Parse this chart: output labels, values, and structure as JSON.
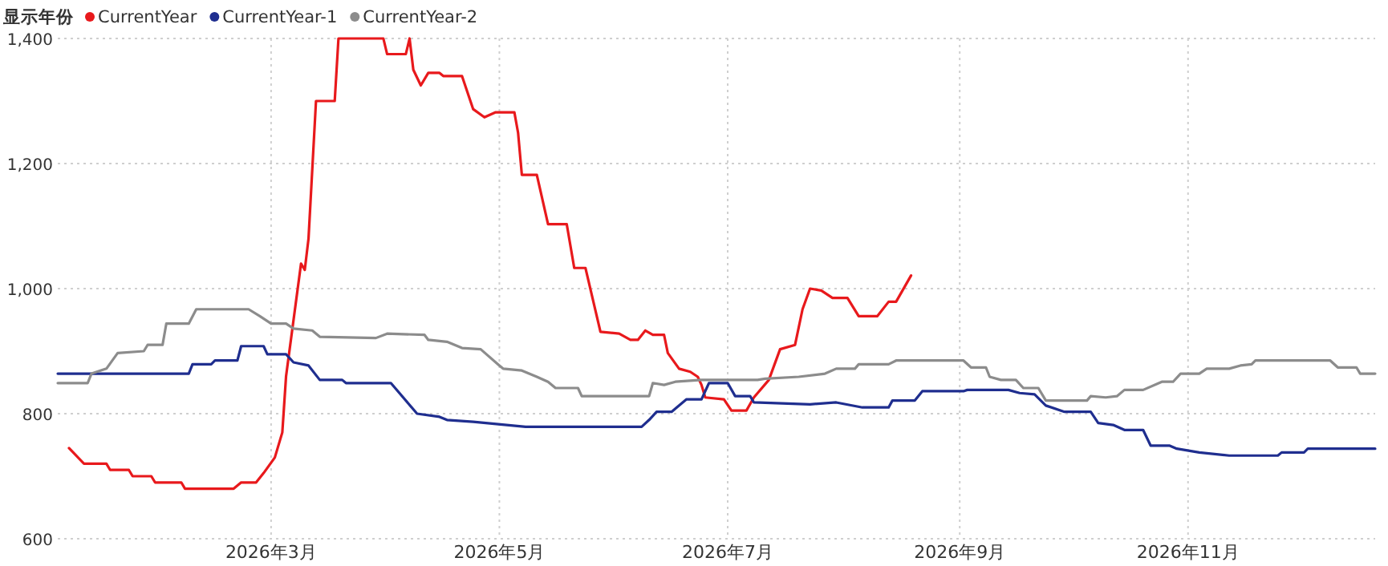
{
  "chart_data": {
    "type": "line",
    "legend_title": "显示年份",
    "legend": "top left",
    "grid": true,
    "xlim": [
      "2026-01-03",
      "2026-12-21"
    ],
    "ylim": [
      600,
      1400
    ],
    "xticks": [
      {
        "value": "2026-03-01",
        "label": "2026年3月"
      },
      {
        "value": "2026-05-01",
        "label": "2026年5月"
      },
      {
        "value": "2026-07-01",
        "label": "2026年7月"
      },
      {
        "value": "2026-09-01",
        "label": "2026年9月"
      },
      {
        "value": "2026-11-01",
        "label": "2026年11月"
      }
    ],
    "yticks": [
      600,
      800,
      {
        "value": 1000,
        "label": "1,000"
      },
      {
        "value": 1200,
        "label": "1,200"
      },
      {
        "value": 1400,
        "label": "1,400"
      }
    ],
    "series": [
      {
        "name": "CurrentYear",
        "color": "#e8191c",
        "x": [
          "2026-01-06",
          "2026-01-10",
          "2026-01-16",
          "2026-01-17",
          "2026-01-22",
          "2026-01-23",
          "2026-01-28",
          "2026-01-29",
          "2026-02-05",
          "2026-02-06",
          "2026-02-19",
          "2026-02-21",
          "2026-02-25",
          "2026-02-27",
          "2026-03-02",
          "2026-03-04",
          "2026-03-05",
          "2026-03-07",
          "2026-03-09",
          "2026-03-10",
          "2026-03-11",
          "2026-03-13",
          "2026-03-18",
          "2026-03-19",
          "2026-03-31",
          "2026-04-01",
          "2026-04-06",
          "2026-04-07",
          "2026-04-08",
          "2026-04-10",
          "2026-04-12",
          "2026-04-15",
          "2026-04-16",
          "2026-04-21",
          "2026-04-24",
          "2026-04-27",
          "2026-04-30",
          "2026-05-05",
          "2026-05-06",
          "2026-05-07",
          "2026-05-11",
          "2026-05-14",
          "2026-05-19",
          "2026-05-21",
          "2026-05-24",
          "2026-05-28",
          "2026-06-02",
          "2026-06-05",
          "2026-06-07",
          "2026-06-09",
          "2026-06-11",
          "2026-06-14",
          "2026-06-15",
          "2026-06-18",
          "2026-06-21",
          "2026-06-23",
          "2026-06-24",
          "2026-06-25",
          "2026-06-30",
          "2026-07-02",
          "2026-07-06",
          "2026-07-08",
          "2026-07-12",
          "2026-07-15",
          "2026-07-19",
          "2026-07-21",
          "2026-07-23",
          "2026-07-26",
          "2026-07-29",
          "2026-08-02",
          "2026-08-05",
          "2026-08-10",
          "2026-08-13",
          "2026-08-15",
          "2026-08-19"
        ],
        "values": [
          745,
          720,
          720,
          710,
          710,
          700,
          700,
          690,
          690,
          680,
          680,
          690,
          690,
          705,
          730,
          770,
          860,
          950,
          1040,
          1030,
          1080,
          1300,
          1300,
          1400,
          1400,
          1375,
          1375,
          1400,
          1350,
          1325,
          1345,
          1345,
          1340,
          1340,
          1287,
          1274,
          1282,
          1282,
          1249,
          1182,
          1182,
          1103,
          1103,
          1033,
          1033,
          931,
          928,
          918,
          918,
          933,
          926,
          926,
          897,
          872,
          867,
          859,
          846,
          826,
          823,
          805,
          805,
          826,
          854,
          903,
          910,
          967,
          1000,
          997,
          985,
          985,
          956,
          956,
          979,
          979,
          1021
        ]
      },
      {
        "name": "CurrentYear-1",
        "color": "#1f2e8f",
        "x": [
          "2026-01-03",
          "2026-02-07",
          "2026-02-08",
          "2026-02-13",
          "2026-02-14",
          "2026-02-20",
          "2026-02-21",
          "2026-02-27",
          "2026-02-28",
          "2026-03-05",
          "2026-03-07",
          "2026-03-11",
          "2026-03-14",
          "2026-03-20",
          "2026-03-21",
          "2026-04-02",
          "2026-04-09",
          "2026-04-15",
          "2026-04-17",
          "2026-04-24",
          "2026-05-08",
          "2026-06-08",
          "2026-06-10",
          "2026-06-12",
          "2026-06-16",
          "2026-06-20",
          "2026-06-24",
          "2026-06-26",
          "2026-07-01",
          "2026-07-03",
          "2026-07-07",
          "2026-07-08",
          "2026-07-23",
          "2026-07-30",
          "2026-08-06",
          "2026-08-13",
          "2026-08-14",
          "2026-08-20",
          "2026-08-22",
          "2026-09-02",
          "2026-09-03",
          "2026-09-14",
          "2026-09-17",
          "2026-09-21",
          "2026-09-24",
          "2026-09-29",
          "2026-10-06",
          "2026-10-08",
          "2026-10-12",
          "2026-10-15",
          "2026-10-20",
          "2026-10-22",
          "2026-10-27",
          "2026-10-29",
          "2026-11-04",
          "2026-11-12",
          "2026-11-25",
          "2026-11-26",
          "2026-12-02",
          "2026-12-03",
          "2026-12-21"
        ],
        "values": [
          864,
          864,
          879,
          879,
          885,
          885,
          908,
          908,
          895,
          895,
          882,
          877,
          854,
          854,
          849,
          849,
          800,
          795,
          790,
          787,
          779,
          779,
          790,
          803,
          803,
          823,
          823,
          849,
          849,
          828,
          828,
          818,
          815,
          818,
          810,
          810,
          821,
          821,
          836,
          836,
          838,
          838,
          833,
          831,
          813,
          803,
          803,
          785,
          782,
          774,
          774,
          749,
          749,
          744,
          738,
          733,
          733,
          738,
          738,
          744,
          744
        ]
      },
      {
        "name": "CurrentYear-2",
        "color": "#8c8c8c",
        "x": [
          "2026-01-03",
          "2026-01-11",
          "2026-01-12",
          "2026-01-16",
          "2026-01-19",
          "2026-01-26",
          "2026-01-27",
          "2026-01-31",
          "2026-02-01",
          "2026-02-07",
          "2026-02-09",
          "2026-02-23",
          "2026-02-26",
          "2026-03-01",
          "2026-03-05",
          "2026-03-07",
          "2026-03-12",
          "2026-03-14",
          "2026-03-29",
          "2026-04-01",
          "2026-04-11",
          "2026-04-12",
          "2026-04-17",
          "2026-04-21",
          "2026-04-26",
          "2026-05-01",
          "2026-05-02",
          "2026-05-07",
          "2026-05-11",
          "2026-05-14",
          "2026-05-16",
          "2026-05-22",
          "2026-05-23",
          "2026-06-10",
          "2026-06-11",
          "2026-06-14",
          "2026-06-17",
          "2026-06-24",
          "2026-07-09",
          "2026-07-11",
          "2026-07-20",
          "2026-07-27",
          "2026-07-30",
          "2026-08-04",
          "2026-08-05",
          "2026-08-13",
          "2026-08-15",
          "2026-09-02",
          "2026-09-04",
          "2026-09-08",
          "2026-09-09",
          "2026-09-12",
          "2026-09-16",
          "2026-09-18",
          "2026-09-22",
          "2026-09-24",
          "2026-10-05",
          "2026-10-06",
          "2026-10-10",
          "2026-10-13",
          "2026-10-15",
          "2026-10-20",
          "2026-10-25",
          "2026-10-28",
          "2026-10-30",
          "2026-11-04",
          "2026-11-06",
          "2026-11-12",
          "2026-11-15",
          "2026-11-18",
          "2026-11-19",
          "2026-12-09",
          "2026-12-11",
          "2026-12-16",
          "2026-12-17",
          "2026-12-21"
        ],
        "values": [
          849,
          849,
          864,
          872,
          897,
          900,
          910,
          910,
          944,
          944,
          967,
          967,
          956,
          944,
          944,
          936,
          933,
          923,
          921,
          928,
          926,
          918,
          915,
          905,
          903,
          877,
          872,
          869,
          859,
          851,
          841,
          841,
          828,
          828,
          849,
          846,
          851,
          854,
          854,
          856,
          859,
          864,
          872,
          872,
          879,
          879,
          885,
          885,
          874,
          874,
          859,
          854,
          854,
          841,
          841,
          821,
          821,
          828,
          826,
          828,
          838,
          838,
          851,
          851,
          864,
          864,
          872,
          872,
          877,
          879,
          885,
          885,
          874,
          874,
          864,
          864
        ]
      }
    ]
  }
}
